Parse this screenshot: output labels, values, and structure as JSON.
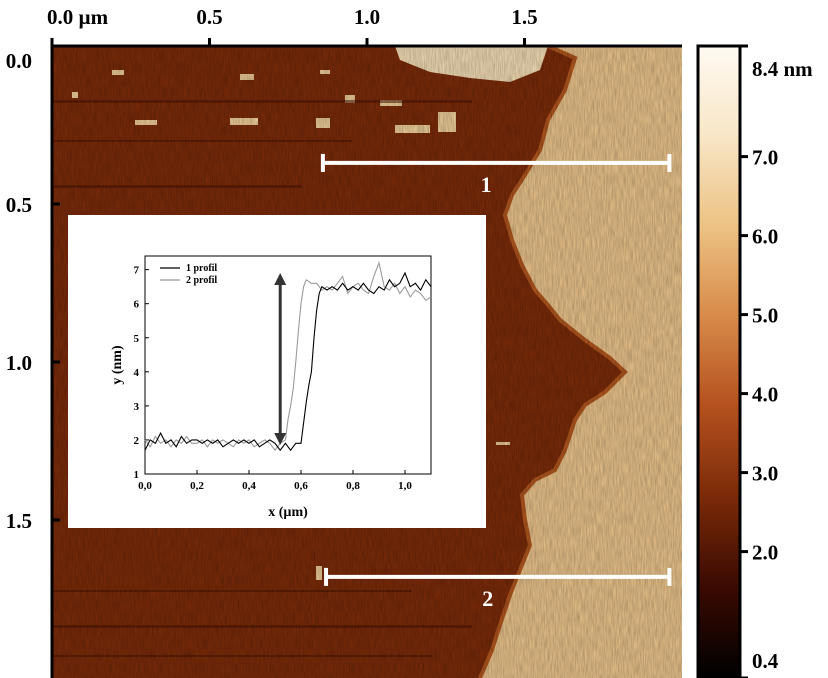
{
  "image": {
    "x_axis_ticks": [
      "0.0 µm",
      "0.5",
      "1.0",
      "1.5"
    ],
    "y_axis_ticks": [
      "0.0",
      "0.5",
      "1.0",
      "1.5"
    ],
    "x_tick_values": [
      0.0,
      0.5,
      1.0,
      1.5
    ],
    "y_tick_values": [
      0.0,
      0.5,
      1.0,
      1.5
    ],
    "x_range_um": [
      0.0,
      2.0
    ],
    "y_range_um": [
      0.0,
      2.0
    ]
  },
  "colorbar": {
    "tick_labels": [
      "8.4 nm",
      "7.0",
      "6.0",
      "5.0",
      "4.0",
      "3.0",
      "2.0",
      "0.4"
    ],
    "tick_values": [
      8.4,
      7.0,
      6.0,
      5.0,
      4.0,
      3.0,
      2.0,
      0.4
    ],
    "range_nm": [
      0.4,
      8.4
    ],
    "colors": [
      "#000000",
      "#3a0a02",
      "#7a2a08",
      "#b4501e",
      "#d88a4a",
      "#ecc283",
      "#f8e6c6",
      "#fffaf2"
    ]
  },
  "profile_lines": [
    {
      "label": "1",
      "x_um": [
        0.86,
        1.96
      ],
      "y_um": 0.37
    },
    {
      "label": "2",
      "x_um": [
        0.87,
        1.96
      ],
      "y_um": 1.68
    }
  ],
  "chart_data": {
    "type": "line",
    "xlabel": "x (µm)",
    "ylabel": "y (nm)",
    "xlim": [
      0.0,
      1.1
    ],
    "ylim": [
      1.0,
      7.4
    ],
    "x_ticks": [
      "0,0",
      "0,2",
      "0,4",
      "0,6",
      "0,8",
      "1,0"
    ],
    "x_tick_values": [
      0.0,
      0.2,
      0.4,
      0.6,
      0.8,
      1.0
    ],
    "y_ticks": [
      "1",
      "2",
      "3",
      "4",
      "5",
      "6",
      "7"
    ],
    "y_tick_values": [
      1,
      2,
      3,
      4,
      5,
      6,
      7
    ],
    "legend_position": "top-left",
    "series": [
      {
        "name": "1 profil",
        "color": "#000000",
        "x": [
          0.0,
          0.02,
          0.04,
          0.06,
          0.08,
          0.1,
          0.12,
          0.14,
          0.16,
          0.18,
          0.2,
          0.22,
          0.24,
          0.26,
          0.28,
          0.3,
          0.32,
          0.34,
          0.36,
          0.38,
          0.4,
          0.42,
          0.44,
          0.46,
          0.48,
          0.5,
          0.52,
          0.54,
          0.56,
          0.58,
          0.6,
          0.61,
          0.62,
          0.63,
          0.64,
          0.65,
          0.66,
          0.67,
          0.68,
          0.7,
          0.72,
          0.74,
          0.76,
          0.78,
          0.8,
          0.82,
          0.84,
          0.86,
          0.88,
          0.9,
          0.92,
          0.94,
          0.96,
          0.98,
          1.0,
          1.02,
          1.04,
          1.06,
          1.08,
          1.1
        ],
        "y": [
          1.7,
          2.0,
          1.9,
          2.2,
          1.9,
          2.0,
          1.8,
          2.1,
          1.9,
          2.0,
          2.0,
          1.9,
          2.0,
          1.9,
          2.0,
          1.8,
          1.9,
          2.0,
          1.9,
          2.0,
          1.9,
          2.0,
          1.8,
          1.9,
          2.0,
          1.9,
          1.7,
          1.9,
          1.7,
          1.9,
          1.9,
          2.5,
          3.1,
          3.6,
          4.0,
          5.0,
          5.8,
          6.3,
          6.5,
          6.4,
          6.5,
          6.4,
          6.6,
          6.4,
          6.5,
          6.4,
          6.6,
          6.4,
          6.3,
          6.5,
          6.4,
          6.7,
          6.5,
          6.6,
          6.9,
          6.5,
          6.6,
          6.4,
          6.7,
          6.5
        ]
      },
      {
        "name": "2 profil",
        "color": "#9a9a9a",
        "x": [
          0.0,
          0.02,
          0.04,
          0.06,
          0.08,
          0.1,
          0.12,
          0.14,
          0.16,
          0.18,
          0.2,
          0.22,
          0.24,
          0.26,
          0.28,
          0.3,
          0.32,
          0.34,
          0.36,
          0.38,
          0.4,
          0.42,
          0.44,
          0.46,
          0.48,
          0.5,
          0.52,
          0.54,
          0.55,
          0.56,
          0.57,
          0.58,
          0.59,
          0.6,
          0.61,
          0.62,
          0.64,
          0.66,
          0.68,
          0.7,
          0.72,
          0.74,
          0.76,
          0.78,
          0.8,
          0.82,
          0.84,
          0.86,
          0.88,
          0.9,
          0.92,
          0.94,
          0.96,
          0.98,
          1.0,
          1.02,
          1.04,
          1.06,
          1.08,
          1.1
        ],
        "y": [
          2.0,
          1.8,
          2.1,
          1.9,
          2.0,
          1.8,
          2.0,
          1.9,
          2.1,
          1.9,
          1.9,
          2.0,
          1.8,
          2.0,
          1.9,
          2.0,
          1.9,
          1.8,
          2.0,
          1.9,
          2.0,
          1.8,
          1.9,
          2.0,
          1.9,
          1.7,
          1.9,
          2.0,
          2.6,
          3.0,
          3.5,
          4.3,
          5.2,
          6.0,
          6.5,
          6.7,
          6.6,
          6.6,
          6.4,
          6.5,
          6.4,
          6.6,
          6.8,
          6.3,
          6.5,
          6.6,
          6.4,
          6.3,
          6.8,
          7.2,
          6.5,
          6.4,
          6.6,
          6.3,
          6.5,
          6.2,
          6.4,
          6.3,
          6.1,
          6.2
        ]
      }
    ],
    "annotations": [
      {
        "type": "double-arrow",
        "x": 0.52,
        "y_from": 1.85,
        "y_to": 6.9,
        "color": "#333333"
      }
    ]
  }
}
